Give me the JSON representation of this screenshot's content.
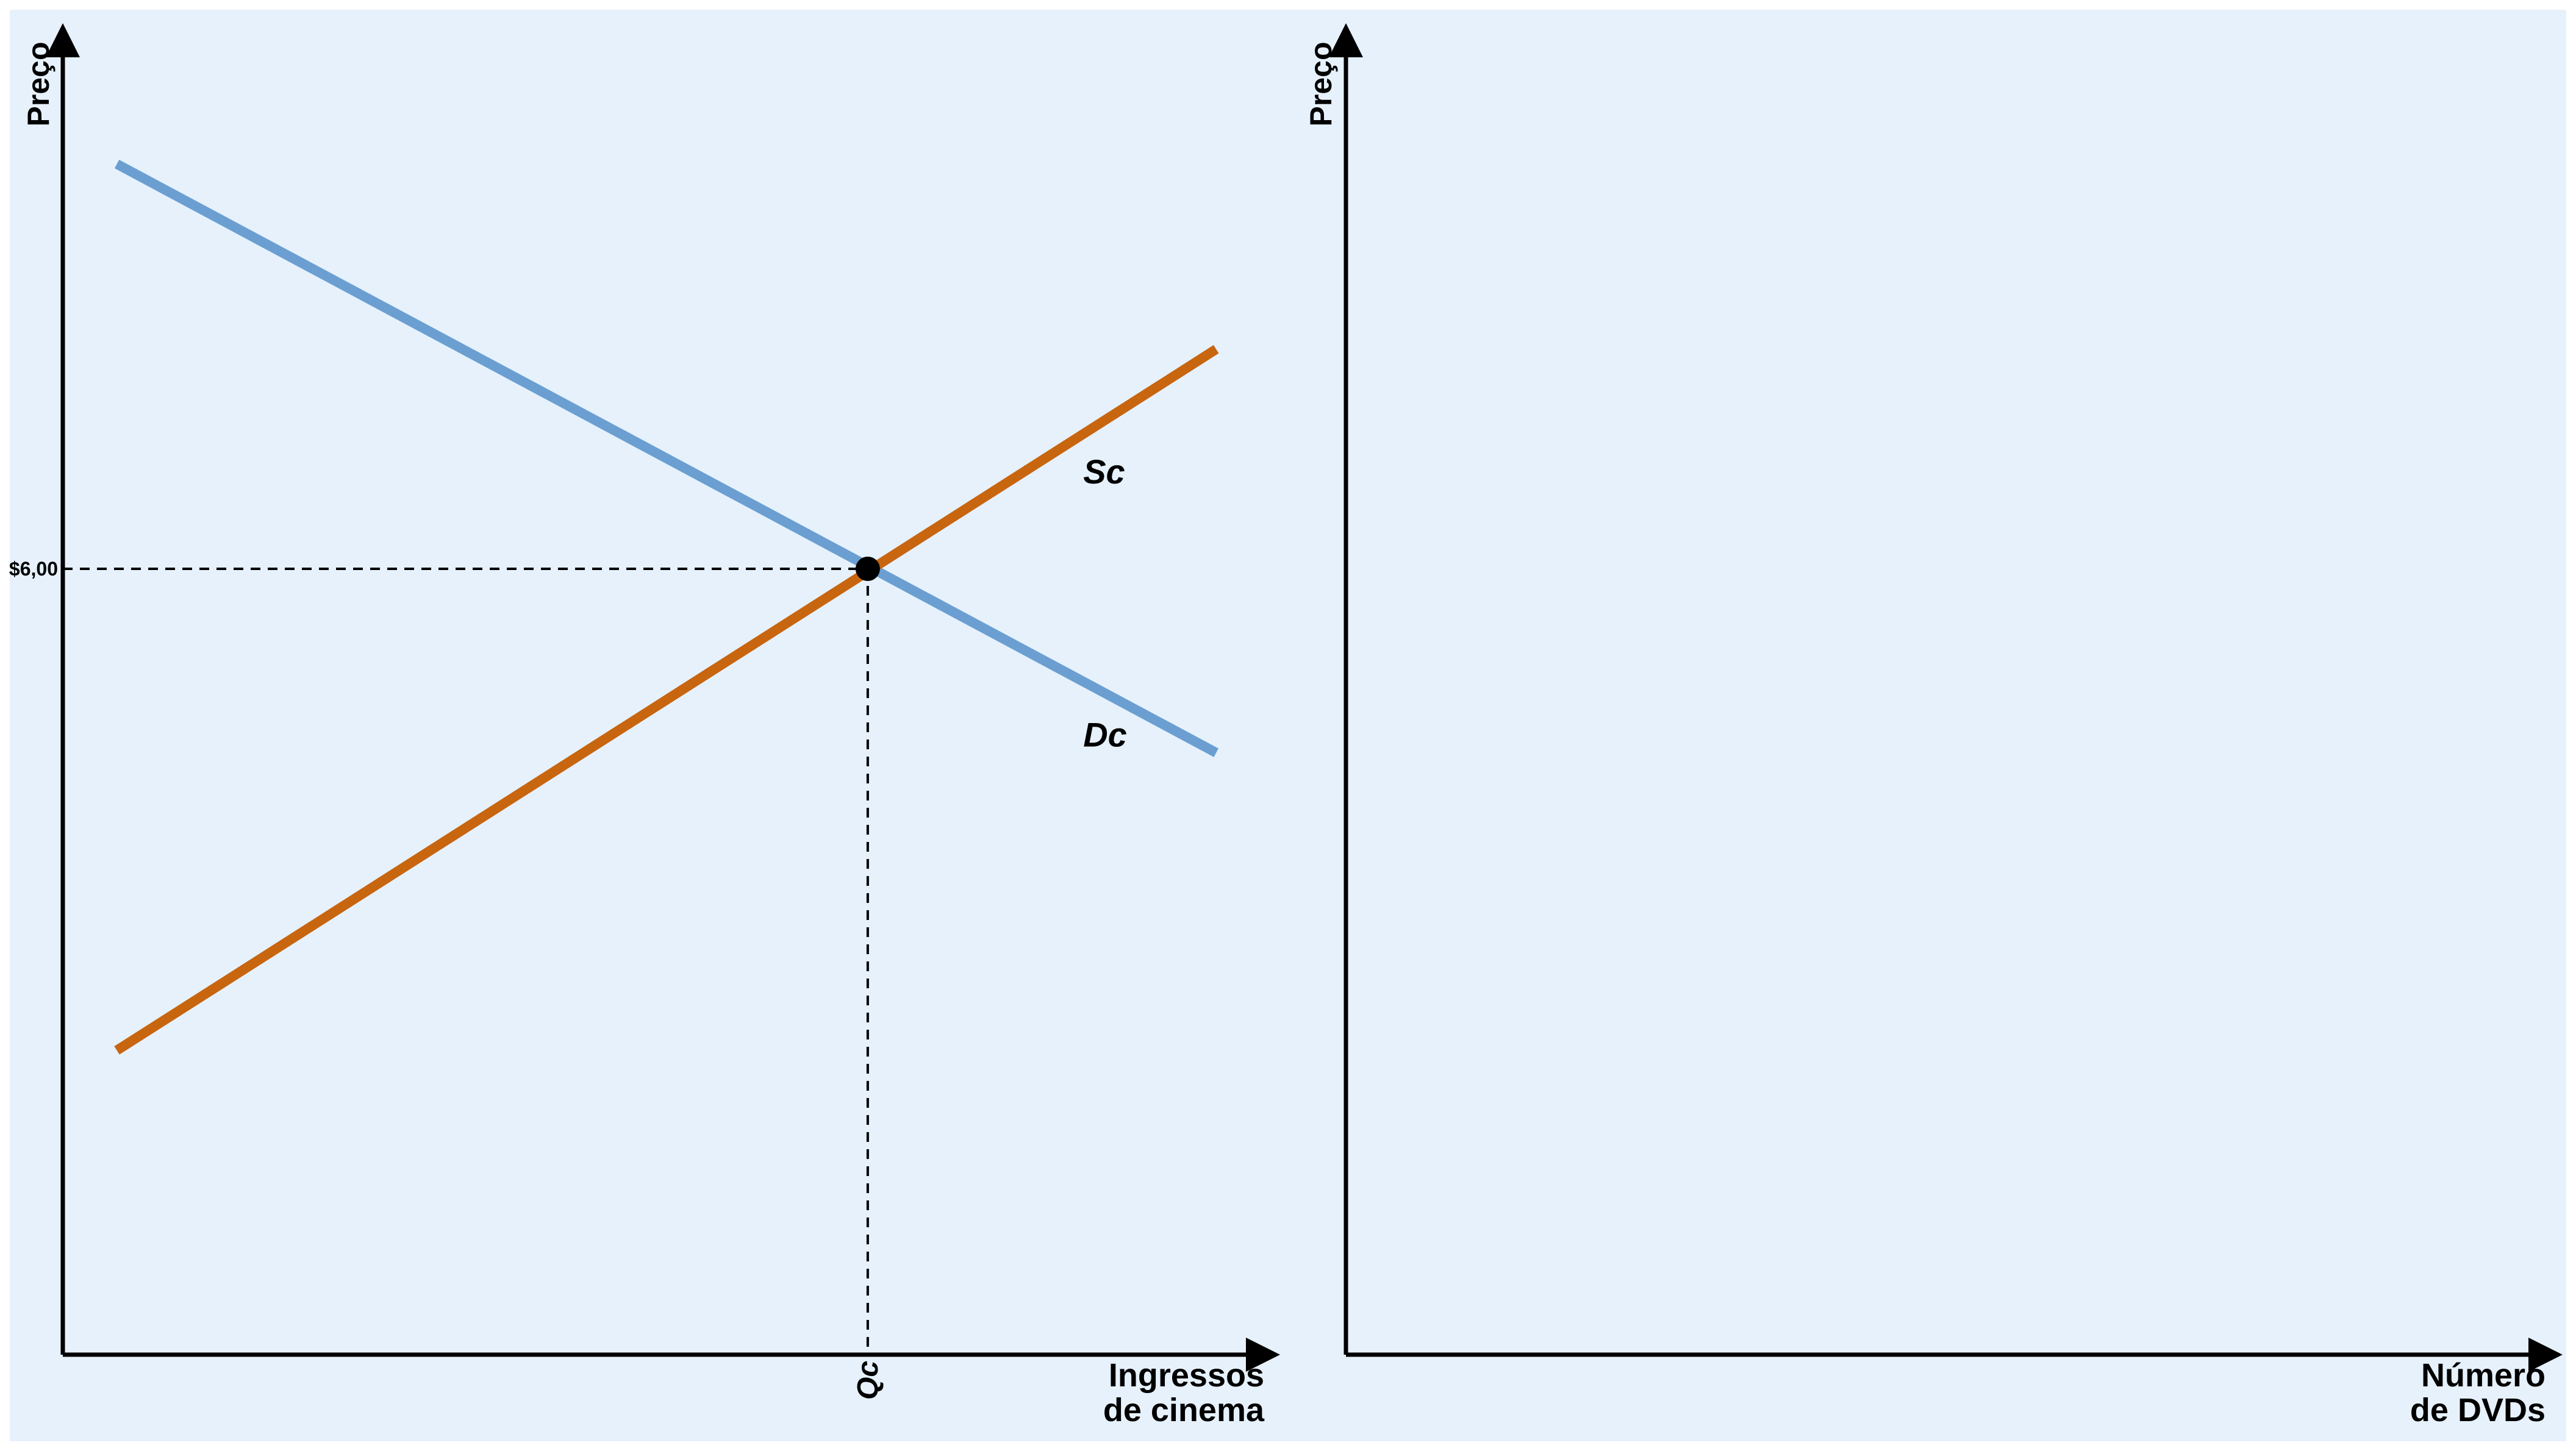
{
  "colors": {
    "background": "#e6f1fc",
    "supply": "#c8650f",
    "demand": "#6b9fd1",
    "axis": "#000000"
  },
  "chart_data": [
    {
      "type": "line",
      "ylabel": "Preço",
      "xlabel_line1": "Ingressos",
      "xlabel_line2": "de cinema",
      "xlim": [
        0,
        100
      ],
      "ylim": [
        0,
        100
      ],
      "series": [
        {
          "name": "Dc",
          "color": "#6b9fd1",
          "points": [
            [
              4.5,
              90
            ],
            [
              96,
              45.5
            ]
          ]
        },
        {
          "name": "Sc",
          "color": "#c8650f",
          "points": [
            [
              4.5,
              23
            ],
            [
              96,
              76
            ]
          ]
        }
      ],
      "equilibrium": {
        "x": 67,
        "y": 59.4,
        "price_label": "$6,00",
        "quantity_label": "Qc"
      }
    },
    {
      "type": "line",
      "ylabel": "Preço",
      "xlabel_line1": "Número",
      "xlabel_line2": "de DVDs",
      "xlim": [
        0,
        100
      ],
      "ylim": [
        0,
        100
      ],
      "series": []
    }
  ]
}
